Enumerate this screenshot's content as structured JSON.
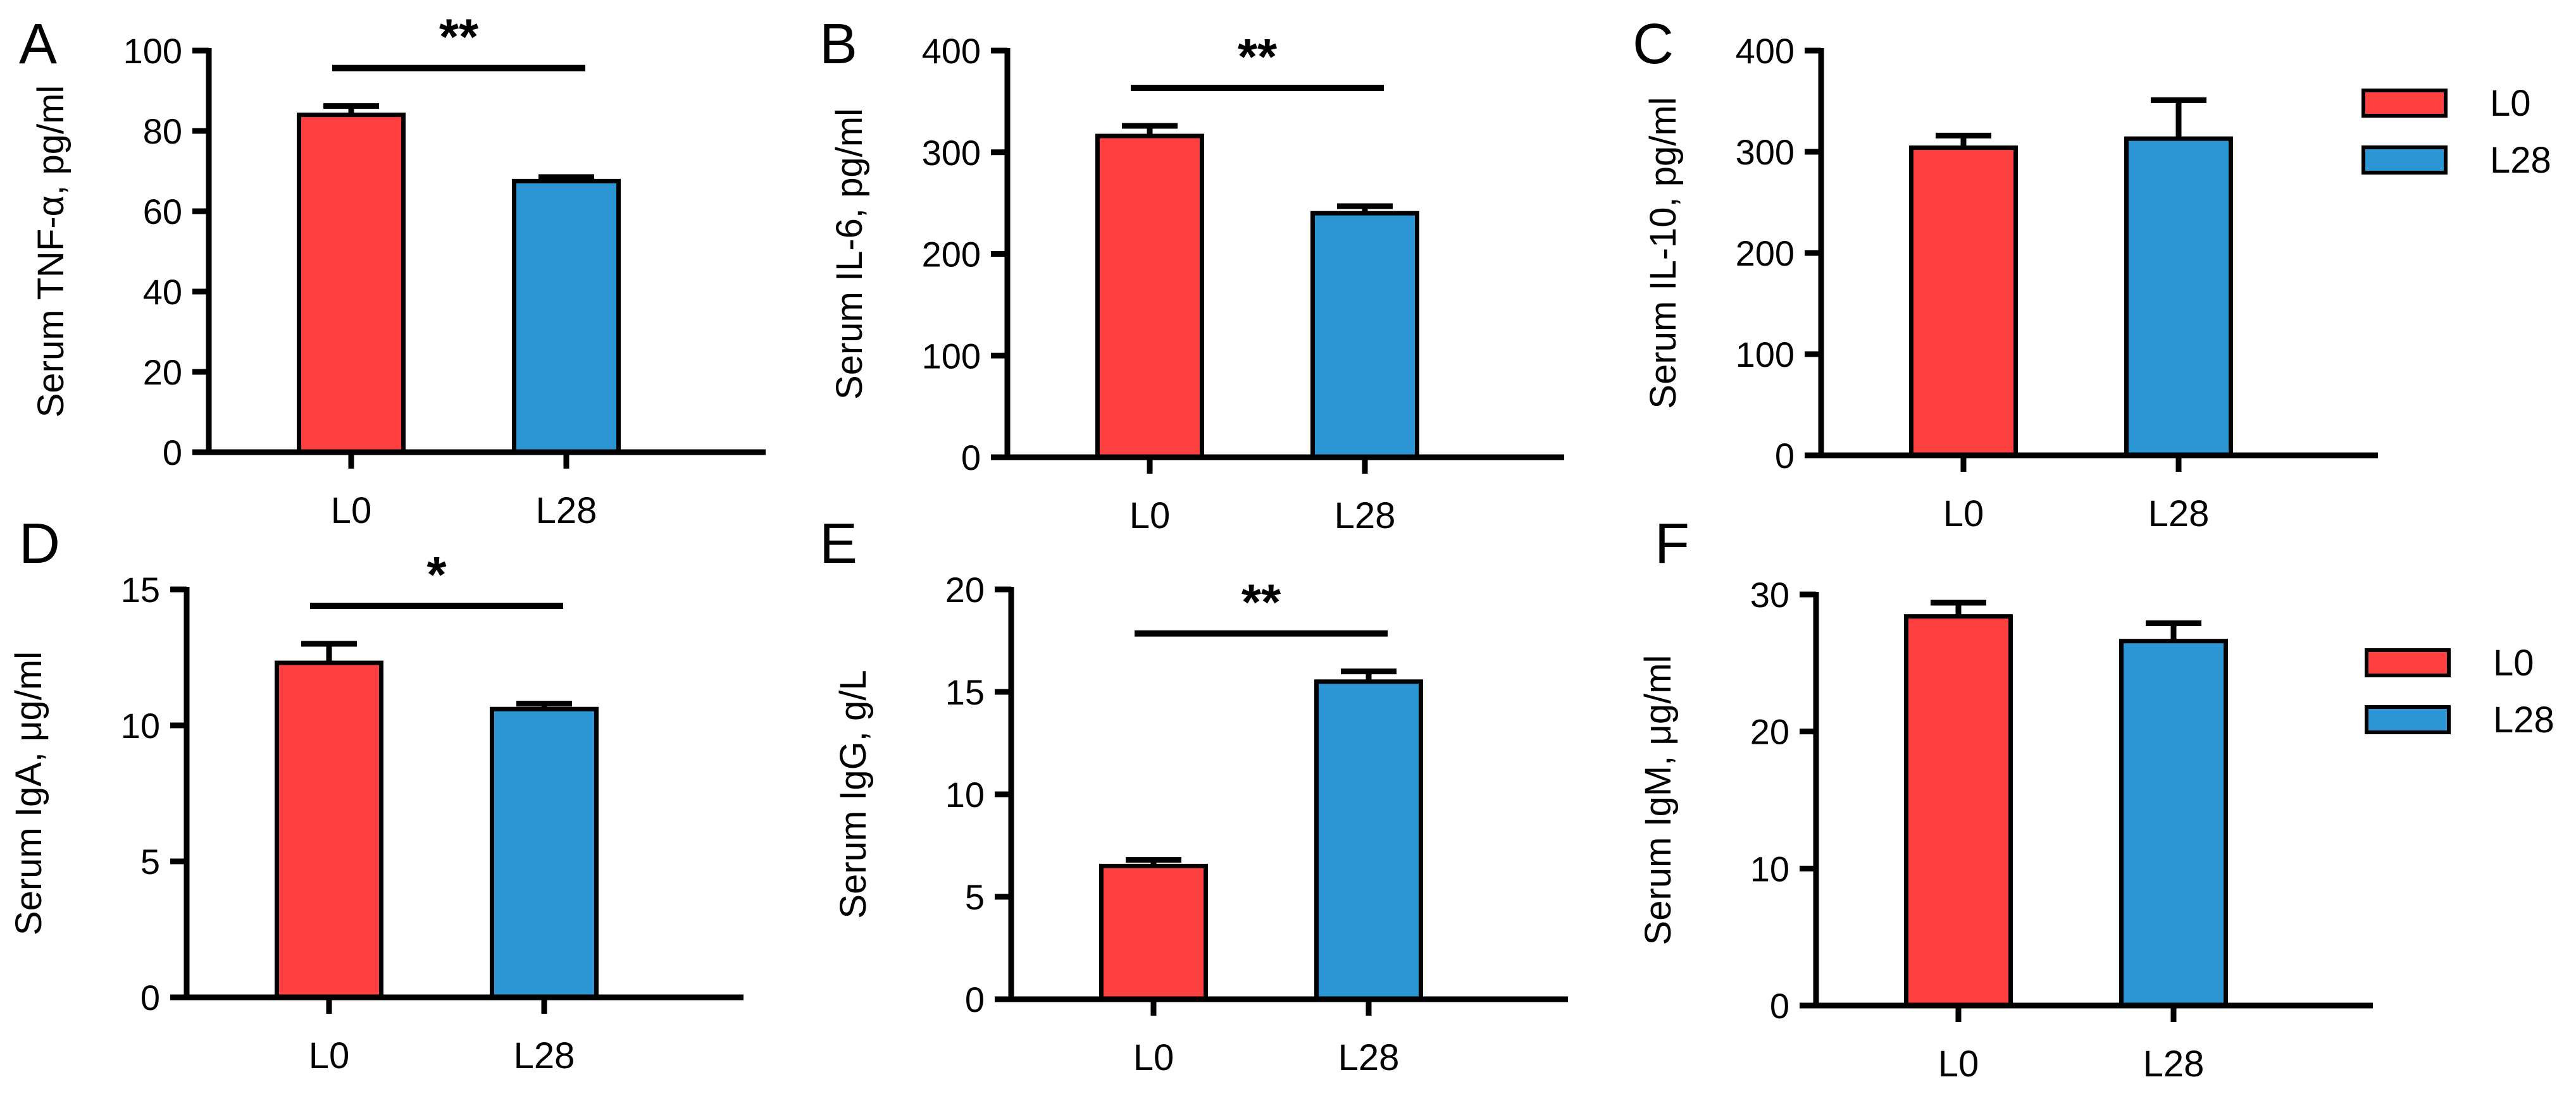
{
  "colors": {
    "L0": "#ff4040",
    "L28": "#2c96d4",
    "axis": "#000000"
  },
  "legend": [
    {
      "name": "L0",
      "color": "#ff4040"
    },
    {
      "name": "L28",
      "color": "#2c96d4"
    }
  ],
  "chart_data": [
    {
      "type": "bar",
      "panel": "A",
      "ylabel": "Serum TNF-α, pg/ml",
      "categories": [
        "L0",
        "L28"
      ],
      "values": [
        84,
        67.5
      ],
      "errors": [
        2.2,
        1.0
      ],
      "ylim": [
        0,
        100
      ],
      "yticks": [
        "0",
        "20",
        "40",
        "60",
        "80",
        "100"
      ],
      "significance": "**"
    },
    {
      "type": "bar",
      "panel": "B",
      "ylabel": "Serum IL-6, pg/ml",
      "categories": [
        "L0",
        "L28"
      ],
      "values": [
        316,
        240
      ],
      "errors": [
        10,
        7
      ],
      "ylim": [
        0,
        400
      ],
      "yticks": [
        "0",
        "100",
        "200",
        "300",
        "400"
      ],
      "significance": "**"
    },
    {
      "type": "bar",
      "panel": "C",
      "ylabel": "Serum IL-10, pg/ml",
      "categories": [
        "L0",
        "L28"
      ],
      "values": [
        304,
        313
      ],
      "errors": [
        12,
        38
      ],
      "ylim": [
        0,
        400
      ],
      "yticks": [
        "0",
        "100",
        "200",
        "300",
        "400"
      ],
      "significance": ""
    },
    {
      "type": "bar",
      "panel": "D",
      "ylabel": "Serum IgA, μg/ml",
      "categories": [
        "L0",
        "L28"
      ],
      "values": [
        12.3,
        10.6
      ],
      "errors": [
        0.7,
        0.2
      ],
      "ylim": [
        0,
        15
      ],
      "yticks": [
        "0",
        "5",
        "10",
        "15"
      ],
      "significance": "*"
    },
    {
      "type": "bar",
      "panel": "E",
      "ylabel": "Serum IgG, g/L",
      "categories": [
        "L0",
        "L28"
      ],
      "values": [
        6.5,
        15.5
      ],
      "errors": [
        0.3,
        0.5
      ],
      "ylim": [
        0,
        20
      ],
      "yticks": [
        "0",
        "5",
        "10",
        "15",
        "20"
      ],
      "significance": "**"
    },
    {
      "type": "bar",
      "panel": "F",
      "ylabel": "Serum IgM, μg/ml",
      "categories": [
        "L0",
        "L28"
      ],
      "values": [
        28.4,
        26.6
      ],
      "errors": [
        1.0,
        1.3
      ],
      "ylim": [
        0,
        30
      ],
      "yticks": [
        "0",
        "10",
        "20",
        "30"
      ],
      "significance": ""
    }
  ]
}
